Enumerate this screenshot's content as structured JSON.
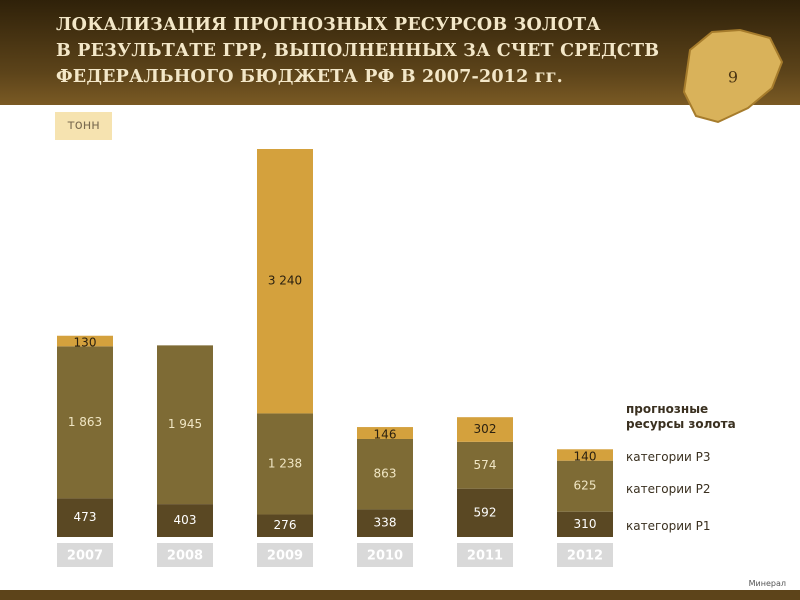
{
  "chart_data": {
    "type": "stacked-bar",
    "title": "ЛОКАЛИЗАЦИЯ ПРОГНОЗНЫХ РЕСУРСОВ ЗОЛОТА\nВ РЕЗУЛЬТАТЕ ГРР, ВЫПОЛНЕННЫХ ЗА СЧЕТ СРЕДСТВ\nФЕДЕРАЛЬНОГО БЮДЖЕТА РФ В 2007-2012 гг.",
    "unit": "тонн",
    "page_number": "9",
    "footer": "Минерал",
    "legend_title": "прогнозные ресурсы золота",
    "categories": [
      "2007",
      "2008",
      "2009",
      "2010",
      "2011",
      "2012"
    ],
    "series": [
      {
        "name": "категории Р1",
        "color": "#5a4823",
        "label_color": "#ffffff",
        "values": [
          473,
          403,
          276,
          338,
          592,
          310
        ]
      },
      {
        "name": "категории Р2",
        "color": "#7e6b35",
        "label_color": "#f0e6c4",
        "values": [
          1863,
          1945,
          1238,
          863,
          574,
          625
        ],
        "value_labels": [
          "1 863",
          "1 945",
          "1 238",
          "863",
          "574",
          "625"
        ]
      },
      {
        "name": "категории Р3",
        "color": "#d4a13d",
        "label_color": "#2b2110",
        "values": [
          130,
          null,
          3240,
          146,
          302,
          140
        ],
        "value_labels": [
          "130",
          null,
          "3 240",
          "146",
          "302",
          "140"
        ]
      }
    ]
  }
}
